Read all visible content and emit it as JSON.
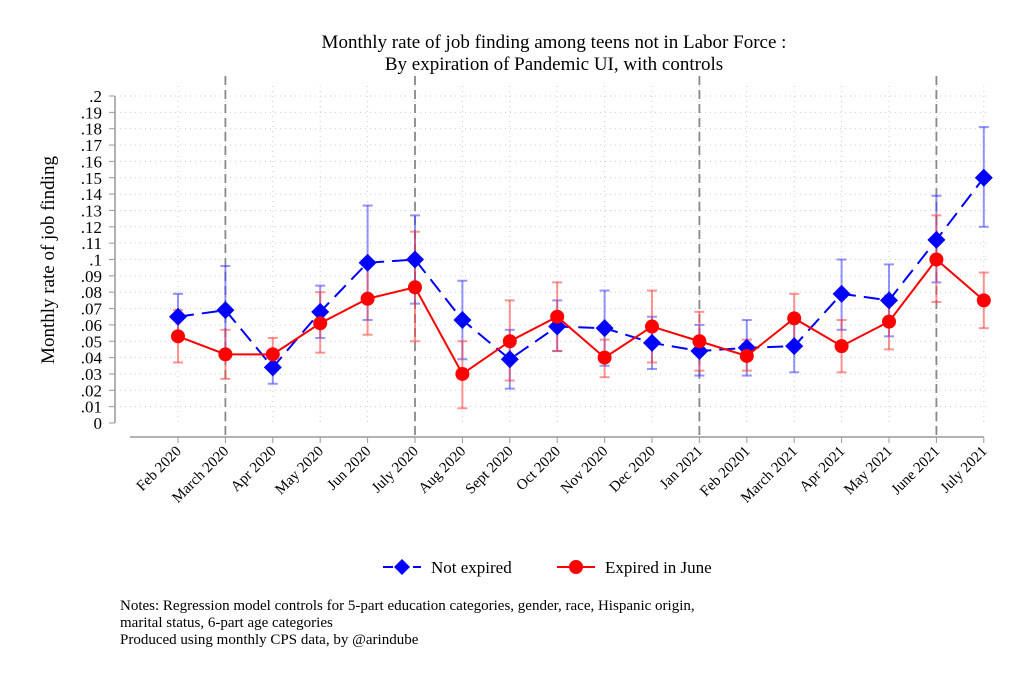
{
  "chart_data": {
    "type": "line",
    "title": [
      "Monthly rate of job finding among teens not in Labor Force :",
      "By expiration of Pandemic UI, with controls"
    ],
    "ylabel": "Monthly rate of job finding",
    "xlabel": "",
    "ylim": [
      0,
      0.2
    ],
    "yticks": [
      ".2",
      ".19",
      ".18",
      ".17",
      ".16",
      ".15",
      ".14",
      ".13",
      ".12",
      ".11",
      ".1",
      ".09",
      ".08",
      ".07",
      ".06",
      ".05",
      ".04",
      ".03",
      ".02",
      ".01",
      "0"
    ],
    "ytick_values": [
      0.2,
      0.19,
      0.18,
      0.17,
      0.16,
      0.15,
      0.14,
      0.13,
      0.12,
      0.11,
      0.1,
      0.09,
      0.08,
      0.07,
      0.06,
      0.05,
      0.04,
      0.03,
      0.02,
      0.01,
      0
    ],
    "grid": true,
    "categories": [
      "Feb 2020",
      "March 2020",
      "Apr 2020",
      "May 2020",
      "Jun 2020",
      "July 2020",
      "Aug 2020",
      "Sept 2020",
      "Oct 2020",
      "Nov 2020",
      "Dec 2020",
      "Jan 2021",
      "Feb 20201",
      "March 2021",
      "Apr 2021",
      "May 2021",
      "June 2021",
      "July 2021"
    ],
    "vertical_lines": [
      "March 2020",
      "July 2020",
      "Jan 2021",
      "June 2021"
    ],
    "legend_position": "bottom",
    "series": [
      {
        "name": "Not expired",
        "color": "#0000ff",
        "marker": "diamond",
        "line": "dashed",
        "values": [
          0.065,
          0.069,
          0.034,
          0.068,
          0.098,
          0.1,
          0.063,
          0.039,
          0.059,
          0.058,
          0.049,
          0.044,
          0.046,
          0.047,
          0.079,
          0.075,
          0.112,
          0.15
        ],
        "lower": [
          0.052,
          0.042,
          0.024,
          0.052,
          0.063,
          0.073,
          0.039,
          0.021,
          0.044,
          0.035,
          0.033,
          0.029,
          0.029,
          0.031,
          0.057,
          0.053,
          0.086,
          0.12
        ],
        "upper": [
          0.079,
          0.096,
          0.043,
          0.084,
          0.133,
          0.127,
          0.087,
          0.057,
          0.075,
          0.081,
          0.065,
          0.06,
          0.063,
          0.063,
          0.1,
          0.097,
          0.139,
          0.181
        ]
      },
      {
        "name": "Expired in June",
        "color": "#ff0000",
        "marker": "circle",
        "line": "solid",
        "values": [
          0.053,
          0.042,
          0.042,
          0.061,
          0.076,
          0.083,
          0.03,
          0.05,
          0.065,
          0.04,
          0.059,
          0.05,
          0.041,
          0.064,
          0.047,
          0.062,
          0.1,
          0.075
        ],
        "lower": [
          0.037,
          0.027,
          0.033,
          0.043,
          0.054,
          0.05,
          0.009,
          0.026,
          0.044,
          0.028,
          0.037,
          0.032,
          0.032,
          0.049,
          0.031,
          0.045,
          0.074,
          0.058
        ],
        "upper": [
          0.069,
          0.057,
          0.052,
          0.08,
          0.097,
          0.117,
          0.05,
          0.075,
          0.086,
          0.051,
          0.081,
          0.068,
          0.051,
          0.079,
          0.063,
          0.078,
          0.127,
          0.092
        ]
      }
    ]
  },
  "notes": [
    "Notes: Regression model controls for 5-part education categories, gender, race, Hispanic origin,",
    "marital status, 6-part age categories",
    "Produced using monthly CPS data, by @arindube"
  ]
}
